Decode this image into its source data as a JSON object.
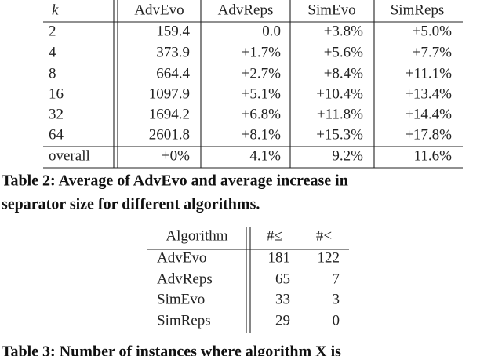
{
  "table2": {
    "header": [
      "k",
      "AdvEvo",
      "AdvReps",
      "SimEvo",
      "SimReps"
    ],
    "rows": [
      [
        "2",
        "159.4",
        "0.0",
        "+3.8%",
        "+5.0%"
      ],
      [
        "4",
        "373.9",
        "+1.7%",
        "+5.6%",
        "+7.7%"
      ],
      [
        "8",
        "664.4",
        "+2.7%",
        "+8.4%",
        "+11.1%"
      ],
      [
        "16",
        "1097.9",
        "+5.1%",
        "+10.4%",
        "+13.4%"
      ],
      [
        "32",
        "1694.2",
        "+6.8%",
        "+11.8%",
        "+14.4%"
      ],
      [
        "64",
        "2601.8",
        "+8.1%",
        "+15.3%",
        "+17.8%"
      ],
      [
        "overall",
        "+0%",
        "4.1%",
        "9.2%",
        "11.6%"
      ]
    ],
    "caption": [
      "Table 2: Average of AdvEvo and average increase in",
      "separator size for different algorithms."
    ]
  },
  "table3": {
    "header": [
      "Algorithm",
      "#≤",
      "#<"
    ],
    "rows": [
      [
        "AdvEvo",
        "181",
        "122"
      ],
      [
        "AdvReps",
        "65",
        "7"
      ],
      [
        "SimEvo",
        "33",
        "3"
      ],
      [
        "SimReps",
        "29",
        "0"
      ]
    ],
    "caption": [
      "Table 3: Number of instances where algorithm X is"
    ]
  }
}
